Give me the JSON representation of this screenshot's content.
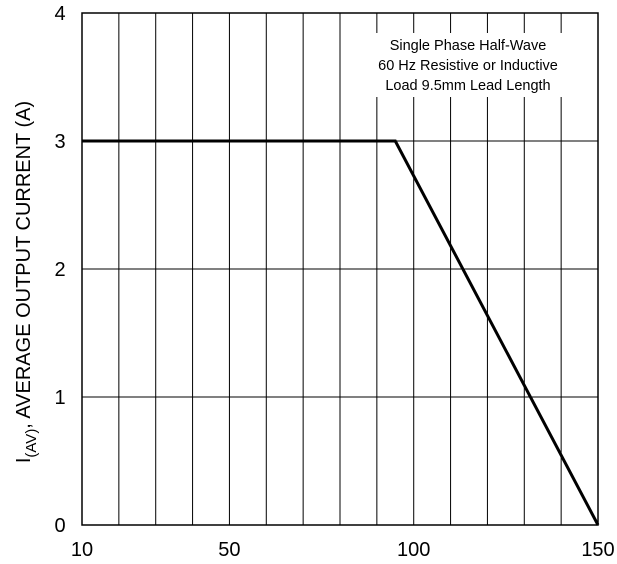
{
  "chart_data": {
    "type": "line",
    "title": "",
    "xlabel": "",
    "ylabel": {
      "main": "I",
      "subscript": "(AV)",
      "rest": ", AVERAGE OUTPUT CURRENT (A)"
    },
    "x_tick_labels": [
      "10",
      "50",
      "100",
      "150"
    ],
    "y_tick_labels": [
      "0",
      "1",
      "2",
      "3",
      "4"
    ],
    "x_ticks": [
      10,
      50,
      100,
      150
    ],
    "y_ticks": [
      0,
      1,
      2,
      3,
      4
    ],
    "xlim": [
      10,
      150
    ],
    "ylim": [
      0,
      4
    ],
    "grid": true,
    "x_grid_step": 10,
    "y_grid_step": 1,
    "annotation": [
      "Single Phase Half-Wave",
      "60 Hz Resistive or Inductive",
      "Load 9.5mm Lead Length"
    ],
    "series": [
      {
        "x": [
          10,
          95,
          150
        ],
        "y": [
          3,
          3,
          0
        ]
      }
    ]
  }
}
